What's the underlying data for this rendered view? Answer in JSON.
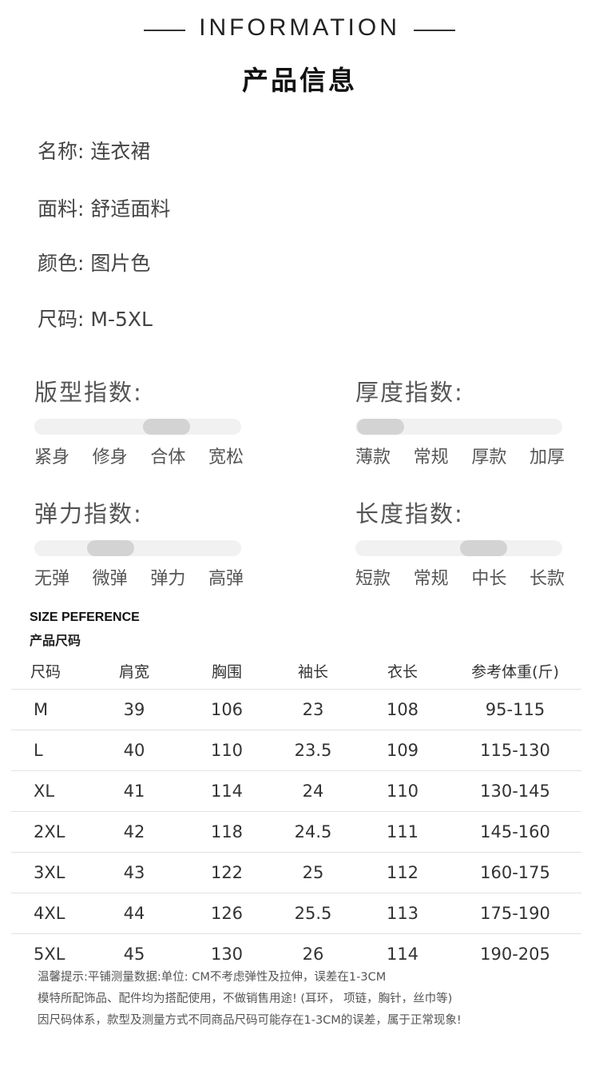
{
  "header": {
    "title_en": "INFORMATION",
    "title_cn": "产品信息"
  },
  "info": [
    {
      "label": "名称:",
      "value": "连衣裙"
    },
    {
      "label": "面料:",
      "value": "舒适面料"
    },
    {
      "label": "颜色:",
      "value": "图片色"
    },
    {
      "label": "尺码:",
      "value": "M-5XL"
    }
  ],
  "indices": [
    {
      "title": "版型指数:",
      "labels": [
        "紧身",
        "修身",
        "合体",
        "宽松"
      ],
      "level": 0.64
    },
    {
      "title": "厚度指数:",
      "labels": [
        "薄款",
        "常规",
        "厚款",
        "加厚"
      ],
      "level": 0.12
    },
    {
      "title": "弹力指数:",
      "labels": [
        "无弹",
        "微弹",
        "弹力",
        "高弹"
      ],
      "level": 0.37
    },
    {
      "title": "长度指数:",
      "labels": [
        "短款",
        "常规",
        "中长",
        "长款"
      ],
      "level": 0.62
    }
  ],
  "size": {
    "title_en": "SIZE PEFERENCE",
    "title_cn": "产品尺码",
    "headers": [
      "尺码",
      "肩宽",
      "胸围",
      "袖长",
      "衣长",
      "参考体重(斤)"
    ],
    "rows": [
      [
        "M",
        "39",
        "106",
        "23",
        "108",
        "95-115"
      ],
      [
        "L",
        "40",
        "110",
        "23.5",
        "109",
        "115-130"
      ],
      [
        "XL",
        "41",
        "114",
        "24",
        "110",
        "130-145"
      ],
      [
        "2XL",
        "42",
        "118",
        "24.5",
        "111",
        "145-160"
      ],
      [
        "3XL",
        "43",
        "122",
        "25",
        "112",
        "160-175"
      ],
      [
        "4XL",
        "44",
        "126",
        "25.5",
        "113",
        "175-190"
      ],
      [
        "5XL",
        "45",
        "130",
        "26",
        "114",
        "190-205"
      ]
    ]
  },
  "notes": [
    "温馨提示:平铺测量数据:单位: CM不考虑弹性及拉伸，误差在1-3CM",
    "模特所配饰品、配件均为搭配使用，不做销售用途! (耳环， 项链，胸针，丝巾等)",
    "因尺码体系，款型及测量方式不同商品尺码可能存在1-3CM的误差，属于正常现象!"
  ],
  "colors": {
    "track": "#f1f1f1",
    "thumb": "#d3d3d3"
  }
}
